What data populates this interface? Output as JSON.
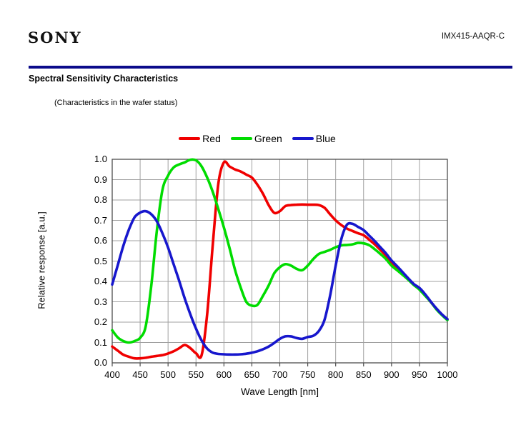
{
  "page": {
    "brand": "SONY",
    "part_number": "IMX415-AAQR-C",
    "section_title": "Spectral Sensitivity Characteristics",
    "section_subtitle": "(Characteristics in the wafer status)",
    "accent_color": "#0b0b8b"
  },
  "chart_data": {
    "type": "line",
    "title": "",
    "xlabel": "Wave Length [nm]",
    "ylabel": "Relative response [a.u.]",
    "xlim": [
      400,
      1000
    ],
    "ylim": [
      0.0,
      1.0
    ],
    "grid": true,
    "legend_position": "top",
    "x_ticks": [
      400,
      450,
      500,
      550,
      600,
      650,
      700,
      750,
      800,
      850,
      900,
      950,
      1000
    ],
    "y_ticks": [
      "0.0",
      "0.1",
      "0.2",
      "0.3",
      "0.4",
      "0.5",
      "0.6",
      "0.7",
      "0.8",
      "0.9",
      "1.0"
    ],
    "x": [
      400,
      410,
      420,
      430,
      440,
      450,
      460,
      470,
      480,
      490,
      500,
      510,
      520,
      530,
      540,
      550,
      560,
      570,
      580,
      590,
      600,
      610,
      620,
      630,
      640,
      650,
      660,
      670,
      680,
      690,
      700,
      710,
      720,
      730,
      740,
      750,
      760,
      770,
      780,
      790,
      800,
      810,
      820,
      830,
      840,
      850,
      860,
      870,
      880,
      890,
      900,
      910,
      920,
      930,
      940,
      950,
      960,
      970,
      980,
      990,
      1000
    ],
    "series": [
      {
        "name": "Red",
        "color": "#f00000",
        "values": [
          0.08,
          0.06,
          0.04,
          0.03,
          0.022,
          0.022,
          0.025,
          0.03,
          0.034,
          0.038,
          0.046,
          0.057,
          0.072,
          0.088,
          0.072,
          0.047,
          0.038,
          0.24,
          0.58,
          0.88,
          0.985,
          0.965,
          0.95,
          0.94,
          0.925,
          0.91,
          0.875,
          0.83,
          0.775,
          0.737,
          0.745,
          0.77,
          0.775,
          0.777,
          0.778,
          0.777,
          0.777,
          0.775,
          0.762,
          0.73,
          0.7,
          0.677,
          0.66,
          0.648,
          0.637,
          0.627,
          0.605,
          0.582,
          0.555,
          0.527,
          0.495,
          0.468,
          0.44,
          0.412,
          0.385,
          0.365,
          0.335,
          0.3,
          0.266,
          0.237,
          0.214
        ]
      },
      {
        "name": "Green",
        "color": "#00dc00",
        "values": [
          0.16,
          0.125,
          0.107,
          0.1,
          0.107,
          0.123,
          0.18,
          0.38,
          0.65,
          0.85,
          0.92,
          0.96,
          0.975,
          0.985,
          0.998,
          0.995,
          0.965,
          0.91,
          0.84,
          0.755,
          0.665,
          0.565,
          0.455,
          0.37,
          0.3,
          0.281,
          0.285,
          0.33,
          0.38,
          0.44,
          0.47,
          0.485,
          0.478,
          0.462,
          0.455,
          0.478,
          0.51,
          0.535,
          0.545,
          0.555,
          0.568,
          0.577,
          0.579,
          0.582,
          0.589,
          0.587,
          0.578,
          0.558,
          0.535,
          0.51,
          0.478,
          0.455,
          0.432,
          0.408,
          0.382,
          0.36,
          0.33,
          0.3,
          0.264,
          0.235,
          0.21
        ]
      },
      {
        "name": "Blue",
        "color": "#1717cd",
        "values": [
          0.385,
          0.48,
          0.575,
          0.655,
          0.715,
          0.738,
          0.745,
          0.73,
          0.695,
          0.636,
          0.566,
          0.484,
          0.402,
          0.315,
          0.238,
          0.168,
          0.11,
          0.07,
          0.05,
          0.044,
          0.042,
          0.041,
          0.041,
          0.042,
          0.045,
          0.05,
          0.057,
          0.067,
          0.08,
          0.098,
          0.118,
          0.13,
          0.13,
          0.122,
          0.118,
          0.127,
          0.133,
          0.157,
          0.21,
          0.33,
          0.478,
          0.607,
          0.678,
          0.683,
          0.668,
          0.652,
          0.625,
          0.598,
          0.568,
          0.538,
          0.503,
          0.475,
          0.445,
          0.415,
          0.387,
          0.368,
          0.338,
          0.302,
          0.268,
          0.239,
          0.215
        ]
      }
    ]
  }
}
